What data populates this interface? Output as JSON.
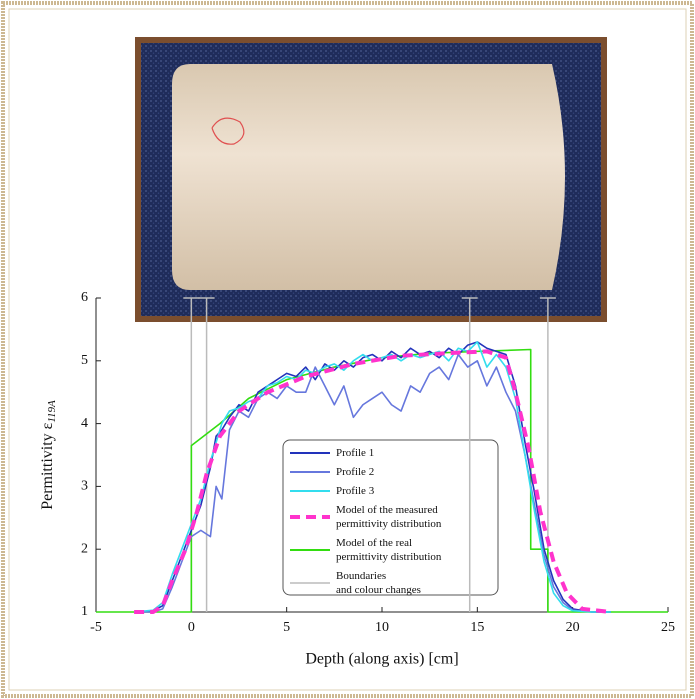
{
  "chart_data": {
    "type": "line",
    "x_label": "Depth (along axis) [cm]",
    "y_label": "Permittivity ε",
    "y_label_subscript": "119A",
    "xlim": [
      -5,
      25
    ],
    "xticks": [
      -5,
      0,
      5,
      10,
      15,
      20,
      25
    ],
    "ylim": [
      1,
      6
    ],
    "yticks": [
      1,
      2,
      3,
      4,
      5,
      6
    ],
    "series": [
      {
        "name": "Profile 1",
        "color": "#2233bb",
        "style": "solid",
        "x": [
          -3,
          -2,
          -1.5,
          -1,
          -0.5,
          0,
          0.5,
          1,
          1.3,
          1.6,
          2,
          2.5,
          3,
          3.5,
          4,
          4.5,
          5,
          5.5,
          6,
          6.5,
          7,
          7.5,
          8,
          8.5,
          9,
          9.5,
          10,
          10.5,
          11,
          11.5,
          12,
          12.5,
          13,
          13.5,
          14,
          14.5,
          15,
          15.5,
          16,
          16.5,
          17,
          17.5,
          18,
          18.5,
          19,
          19.5,
          20,
          21,
          22
        ],
        "values": [
          1.0,
          1.02,
          1.1,
          1.5,
          1.9,
          2.3,
          2.7,
          3.3,
          3.8,
          3.9,
          4.1,
          4.3,
          4.2,
          4.5,
          4.6,
          4.7,
          4.8,
          4.75,
          4.9,
          4.7,
          4.95,
          4.85,
          5.0,
          4.9,
          5.05,
          5.1,
          5.0,
          5.15,
          5.05,
          5.2,
          5.1,
          5.15,
          5.05,
          5.2,
          5.1,
          5.25,
          5.3,
          5.2,
          5.15,
          5.1,
          4.6,
          3.7,
          2.9,
          2.0,
          1.5,
          1.2,
          1.05,
          1.0,
          1.0
        ]
      },
      {
        "name": "Profile 2",
        "color": "#6677dd",
        "style": "solid",
        "x": [
          -3,
          -2,
          -1.5,
          -1,
          -0.5,
          0,
          0.5,
          1,
          1.3,
          1.6,
          2,
          2.5,
          3,
          3.5,
          4,
          4.5,
          5,
          5.5,
          6,
          6.5,
          7,
          7.5,
          8,
          8.5,
          9,
          9.5,
          10,
          10.5,
          11,
          11.5,
          12,
          12.5,
          13,
          13.5,
          14,
          14.5,
          15,
          15.5,
          16,
          16.5,
          17,
          17.5,
          18,
          18.5,
          19,
          19.5,
          20,
          21,
          22
        ],
        "values": [
          1.0,
          1.0,
          1.05,
          1.4,
          1.8,
          2.2,
          2.3,
          2.2,
          3.0,
          2.8,
          3.9,
          4.2,
          4.1,
          4.4,
          4.5,
          4.4,
          4.6,
          4.5,
          4.5,
          4.9,
          4.6,
          4.3,
          4.6,
          4.1,
          4.3,
          4.4,
          4.5,
          4.3,
          4.2,
          4.6,
          4.5,
          4.8,
          4.9,
          4.7,
          5.1,
          4.9,
          5.0,
          4.6,
          4.9,
          4.5,
          4.2,
          3.5,
          2.7,
          1.9,
          1.4,
          1.15,
          1.03,
          1.0,
          1.0
        ]
      },
      {
        "name": "Profile 3",
        "color": "#33ddee",
        "style": "solid",
        "x": [
          -3,
          -2,
          -1.5,
          -1,
          -0.5,
          0,
          0.5,
          1,
          1.3,
          1.6,
          2,
          2.5,
          3,
          3.5,
          4,
          4.5,
          5,
          5.5,
          6,
          6.5,
          7,
          7.5,
          8,
          8.5,
          9,
          9.5,
          10,
          10.5,
          11,
          11.5,
          12,
          12.5,
          13,
          13.5,
          14,
          14.5,
          15,
          15.5,
          16,
          16.5,
          17,
          17.5,
          18,
          18.5,
          19,
          19.5,
          20,
          21,
          22
        ],
        "values": [
          1.0,
          1.03,
          1.15,
          1.6,
          2.0,
          2.4,
          2.8,
          3.4,
          3.7,
          4.0,
          4.2,
          4.25,
          4.35,
          4.4,
          4.6,
          4.65,
          4.75,
          4.7,
          4.85,
          4.8,
          4.9,
          4.95,
          4.85,
          5.0,
          5.1,
          5.0,
          5.05,
          5.1,
          5.0,
          5.1,
          5.05,
          5.1,
          5.15,
          5.0,
          5.2,
          5.15,
          5.3,
          4.9,
          5.1,
          4.9,
          4.4,
          3.5,
          2.6,
          1.8,
          1.3,
          1.1,
          1.02,
          1.0,
          1.0
        ]
      },
      {
        "name": "Model of the measured\npermittivity distribution",
        "color": "#ff33cc",
        "style": "dashed",
        "x": [
          -3,
          -2,
          -1.5,
          -1,
          -0.3,
          0.3,
          0.8,
          1.5,
          2.5,
          4,
          6,
          8.5,
          11,
          14,
          15.5,
          16.5,
          17,
          17.7,
          18.3,
          19,
          19.7,
          20.5,
          22
        ],
        "values": [
          1,
          1,
          1.1,
          1.5,
          2.0,
          2.6,
          3.2,
          3.8,
          4.2,
          4.5,
          4.75,
          4.95,
          5.08,
          5.13,
          5.15,
          5.05,
          4.5,
          3.6,
          2.6,
          1.8,
          1.3,
          1.05,
          1
        ]
      },
      {
        "name": "Model of the real\npermittivity distribution",
        "color": "#33dd11",
        "style": "solid",
        "x": [
          -5,
          0,
          0,
          1.5,
          3,
          5,
          7.5,
          10,
          12.5,
          15,
          17.8,
          17.8,
          18.7,
          18.7,
          25
        ],
        "values": [
          1,
          1,
          3.65,
          4.0,
          4.4,
          4.7,
          4.9,
          5.05,
          5.12,
          5.15,
          5.18,
          2.0,
          2.0,
          1,
          1
        ]
      }
    ],
    "boundaries": {
      "name": "Boundaries\nand colour changes",
      "color": "#bbbbbb",
      "x": [
        0,
        0.8,
        14.6,
        18.7
      ]
    }
  }
}
